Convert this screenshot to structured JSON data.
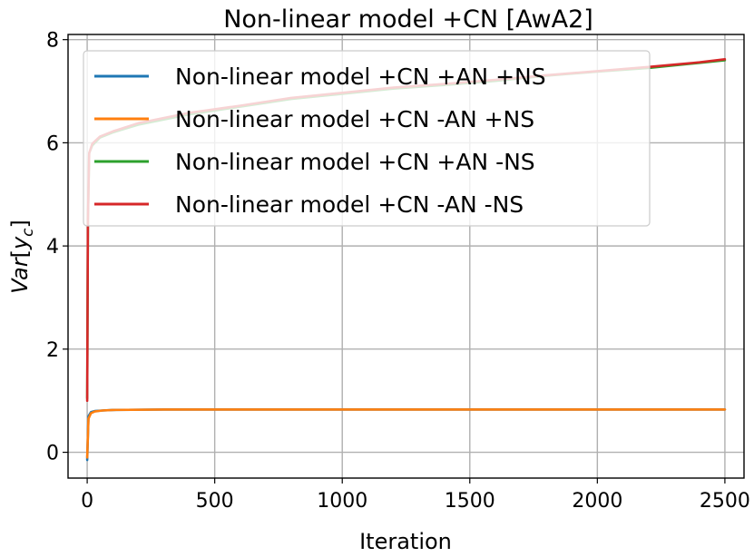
{
  "chart_data": {
    "type": "line",
    "title": "Non-linear model +CN [AwA2]",
    "xlabel": "Iteration",
    "ylabel_main": "Var",
    "ylabel_sub": "c",
    "ylabel_var": "y",
    "xlim": [
      -75,
      2575
    ],
    "ylim": [
      -0.5,
      8.1
    ],
    "xticks": [
      0,
      500,
      1000,
      1500,
      2000,
      2500
    ],
    "yticks": [
      0,
      2,
      4,
      6,
      8
    ],
    "grid": true,
    "legend_position": "upper-left",
    "series": [
      {
        "name": "Non-linear model +CN +AN +NS",
        "color": "#1f77b4",
        "points": [
          [
            0,
            -0.15
          ],
          [
            5,
            0.7
          ],
          [
            15,
            0.78
          ],
          [
            30,
            0.8
          ],
          [
            60,
            0.81
          ],
          [
            100,
            0.82
          ],
          [
            300,
            0.83
          ],
          [
            600,
            0.83
          ],
          [
            1000,
            0.83
          ],
          [
            1500,
            0.83
          ],
          [
            2000,
            0.83
          ],
          [
            2500,
            0.83
          ]
        ]
      },
      {
        "name": "Non-linear model +CN -AN +NS",
        "color": "#ff7f0e",
        "points": [
          [
            0,
            -0.1
          ],
          [
            5,
            0.65
          ],
          [
            15,
            0.76
          ],
          [
            30,
            0.79
          ],
          [
            60,
            0.81
          ],
          [
            100,
            0.82
          ],
          [
            300,
            0.83
          ],
          [
            600,
            0.83
          ],
          [
            1000,
            0.83
          ],
          [
            1500,
            0.83
          ],
          [
            2000,
            0.83
          ],
          [
            2500,
            0.83
          ]
        ]
      },
      {
        "name": "Non-linear model +CN +AN -NS",
        "color": "#2ca02c",
        "points": [
          [
            0,
            1.05
          ],
          [
            3,
            4.5
          ],
          [
            8,
            5.8
          ],
          [
            20,
            5.95
          ],
          [
            50,
            6.1
          ],
          [
            100,
            6.2
          ],
          [
            200,
            6.35
          ],
          [
            400,
            6.55
          ],
          [
            600,
            6.7
          ],
          [
            800,
            6.85
          ],
          [
            1000,
            6.95
          ],
          [
            1200,
            7.05
          ],
          [
            1400,
            7.12
          ],
          [
            1600,
            7.2
          ],
          [
            1800,
            7.3
          ],
          [
            2000,
            7.38
          ],
          [
            2200,
            7.45
          ],
          [
            2400,
            7.55
          ],
          [
            2500,
            7.6
          ]
        ]
      },
      {
        "name": "Non-linear model +CN -AN -NS",
        "color": "#d62728",
        "points": [
          [
            0,
            1.0
          ],
          [
            3,
            4.5
          ],
          [
            8,
            5.8
          ],
          [
            20,
            5.98
          ],
          [
            50,
            6.12
          ],
          [
            100,
            6.22
          ],
          [
            200,
            6.38
          ],
          [
            400,
            6.58
          ],
          [
            600,
            6.72
          ],
          [
            800,
            6.87
          ],
          [
            1000,
            6.97
          ],
          [
            1200,
            7.07
          ],
          [
            1400,
            7.14
          ],
          [
            1600,
            7.22
          ],
          [
            1800,
            7.31
          ],
          [
            2000,
            7.39
          ],
          [
            2200,
            7.47
          ],
          [
            2400,
            7.56
          ],
          [
            2500,
            7.62
          ]
        ]
      }
    ]
  }
}
